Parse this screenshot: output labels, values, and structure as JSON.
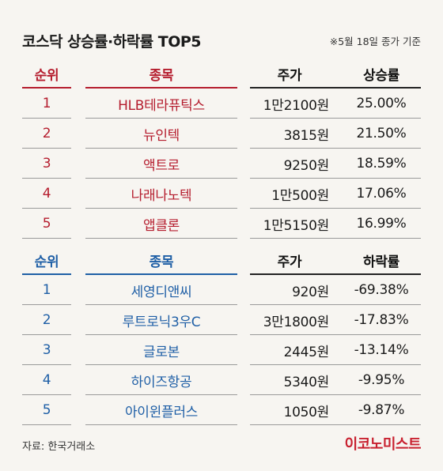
{
  "title": "코스닥 상승률·하락률 TOP5",
  "note": "※5월 18일 종가 기준",
  "rise": {
    "headers": [
      "순위",
      "종목",
      "주가",
      "상승률"
    ],
    "rows": [
      {
        "rank": "1",
        "name": "HLB테라퓨틱스",
        "price": "1만2100원",
        "change": "25.00%"
      },
      {
        "rank": "2",
        "name": "뉴인텍",
        "price": "3815원",
        "change": "21.50%"
      },
      {
        "rank": "3",
        "name": "액트로",
        "price": "9250원",
        "change": "18.59%"
      },
      {
        "rank": "4",
        "name": "나래나노텍",
        "price": "1만500원",
        "change": "17.06%"
      },
      {
        "rank": "5",
        "name": "앱클론",
        "price": "1만5150원",
        "change": "16.99%"
      }
    ]
  },
  "fall": {
    "headers": [
      "순위",
      "종목",
      "주가",
      "하락률"
    ],
    "rows": [
      {
        "rank": "1",
        "name": "세영디앤씨",
        "price": "920원",
        "change": "-69.38%"
      },
      {
        "rank": "2",
        "name": "루트로닉3우C",
        "price": "3만1800원",
        "change": "-17.83%"
      },
      {
        "rank": "3",
        "name": "글로본",
        "price": "2445원",
        "change": "-13.14%"
      },
      {
        "rank": "4",
        "name": "하이즈항공",
        "price": "5340원",
        "change": "-9.95%"
      },
      {
        "rank": "5",
        "name": "아이윈플러스",
        "price": "1050원",
        "change": "-9.87%"
      }
    ]
  },
  "source": "자료: 한국거래소",
  "brand": "이코노미스트",
  "colors": {
    "rise": "#b51d2e",
    "fall": "#1f5fa6",
    "brand": "#c8202f"
  }
}
